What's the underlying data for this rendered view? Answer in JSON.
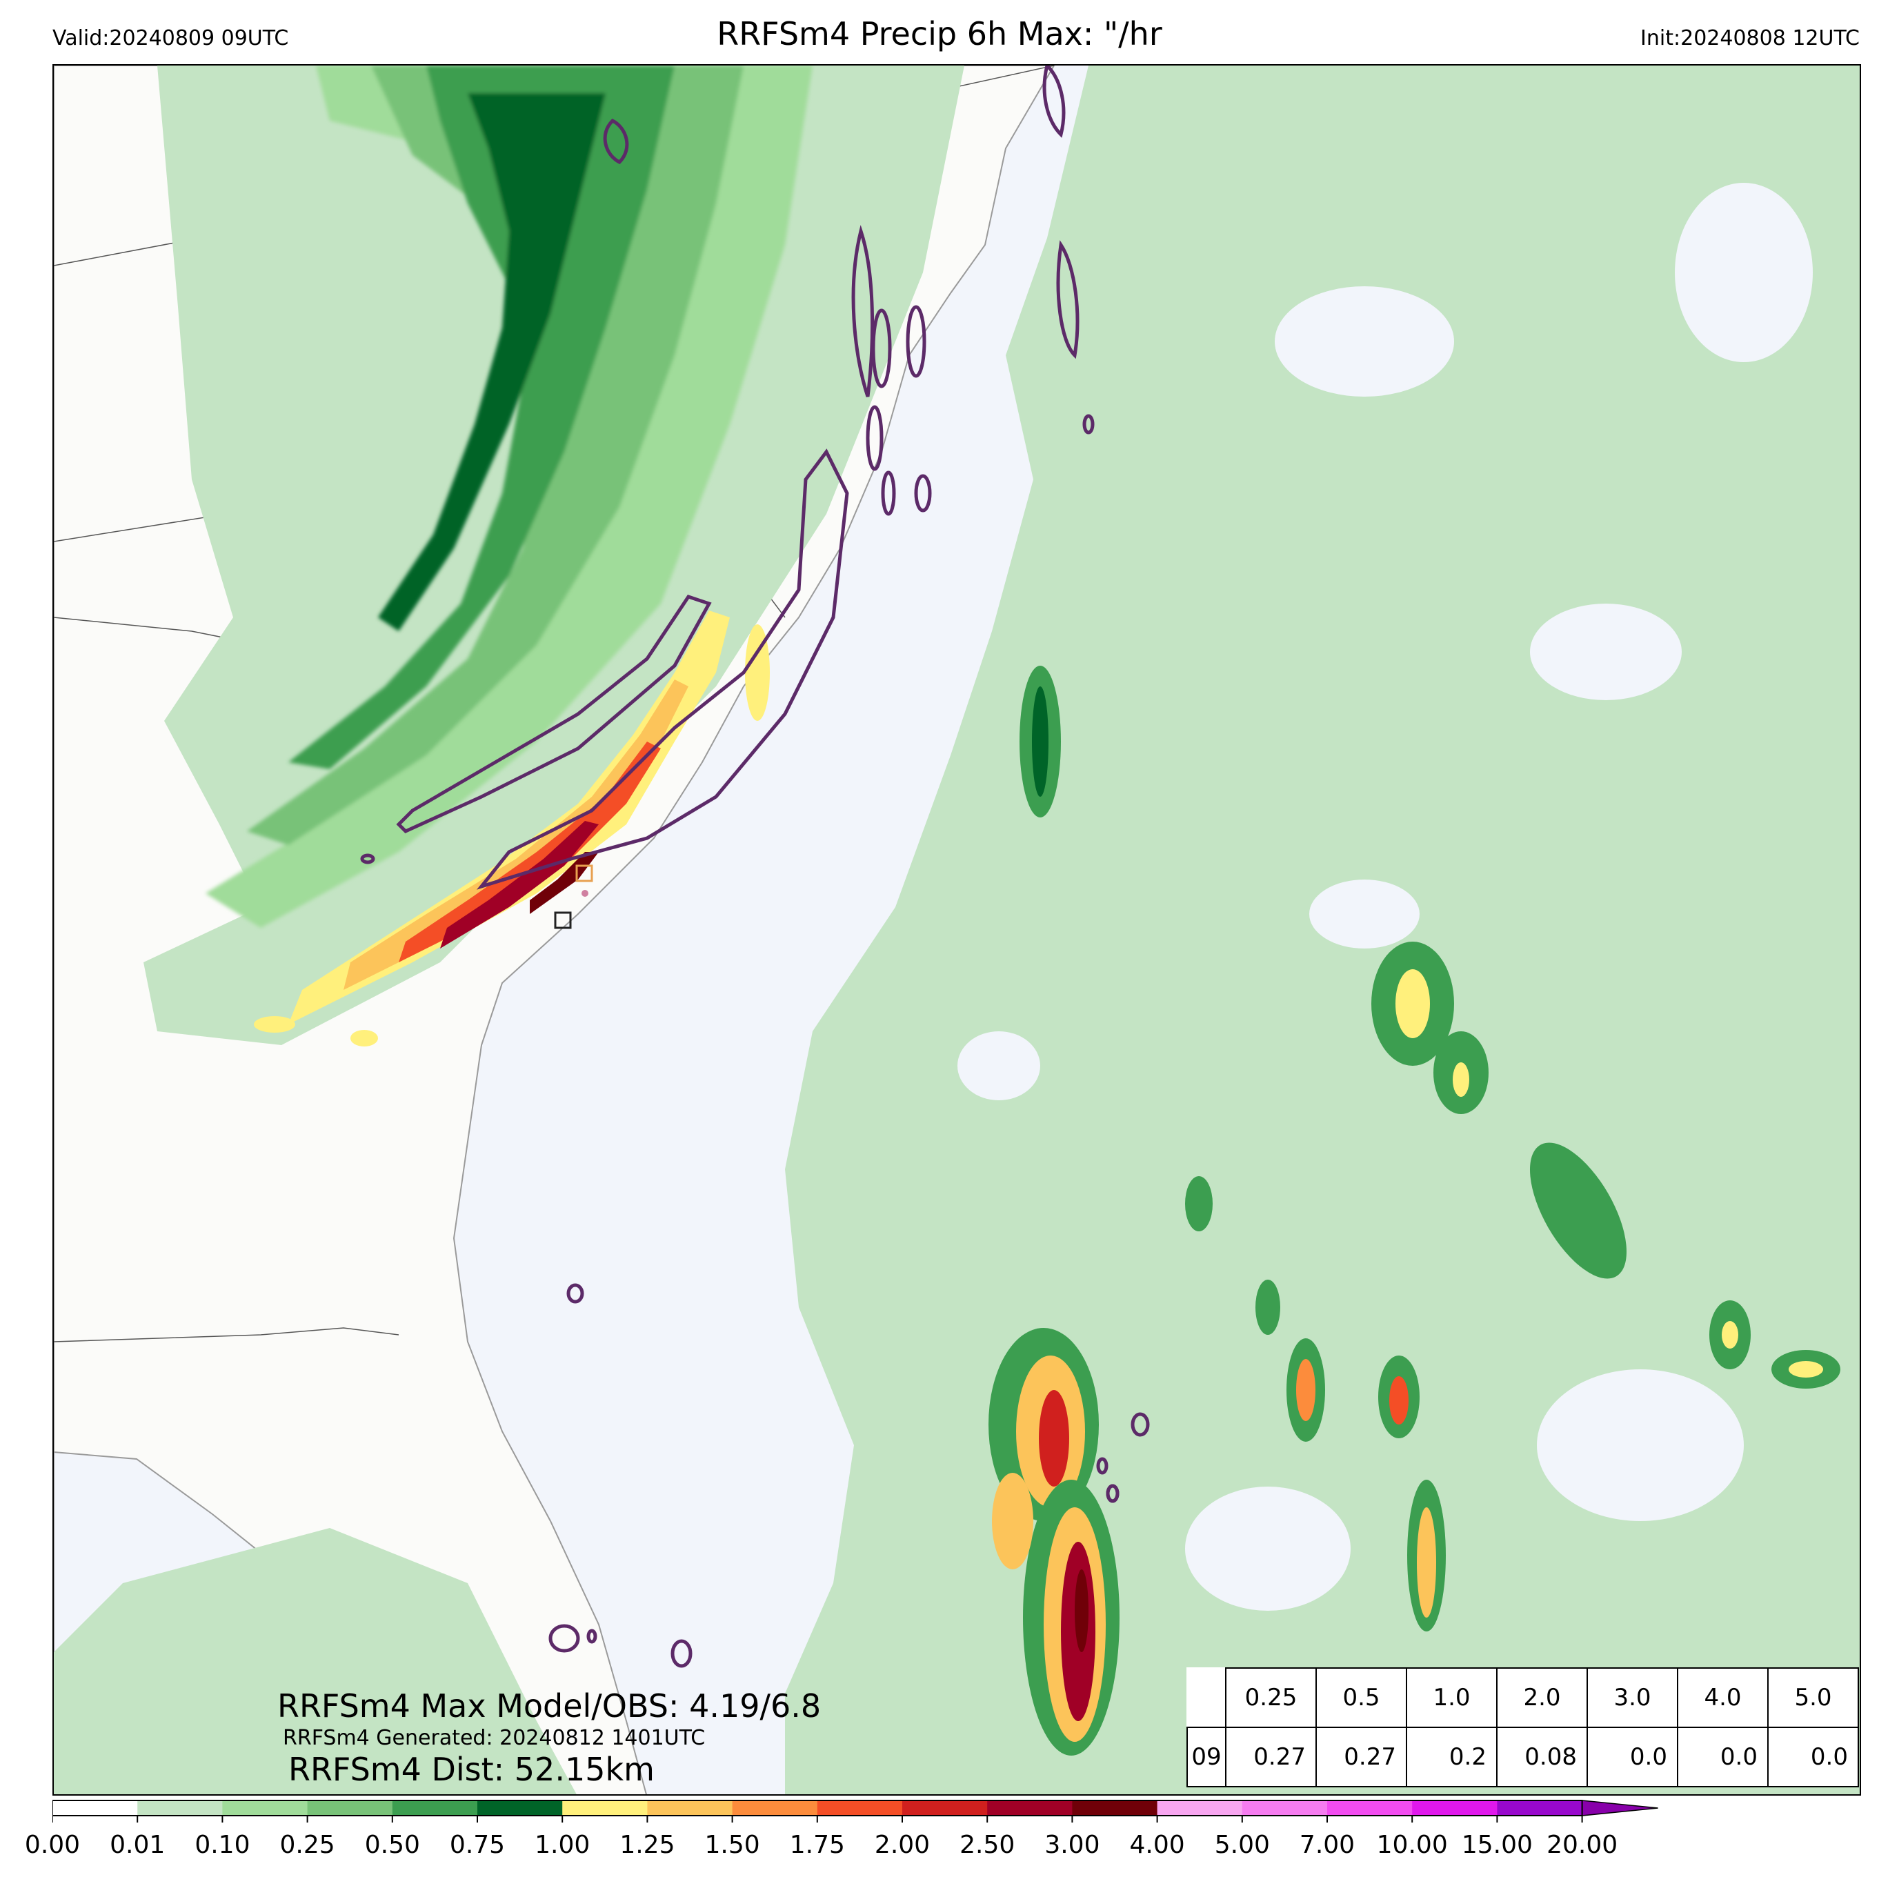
{
  "header": {
    "valid": "Valid:20240809 09UTC",
    "title": "RRFSm4 Precip 6h Max: \"/hr",
    "init": "Init:20240808 12UTC"
  },
  "annotations": {
    "max_model_obs": "RRFSm4 Max Model/OBS: 4.19/6.8",
    "generated": "RRFSm4 Generated: 20240812 1401UTC",
    "distance": "RRFSm4 Dist: 52.15km"
  },
  "threshold_table": {
    "headers": [
      "0.25",
      "0.5",
      "1.0",
      "2.0",
      "3.0",
      "4.0",
      "5.0"
    ],
    "row_label": "09",
    "values": [
      "0.27",
      "0.27",
      "0.2",
      "0.08",
      "0.0",
      "0.0",
      "0.0"
    ]
  },
  "colorbar": {
    "ticks": [
      "0.00",
      "0.01",
      "0.10",
      "0.25",
      "0.50",
      "0.75",
      "1.00",
      "1.25",
      "1.50",
      "1.75",
      "2.00",
      "2.50",
      "3.00",
      "4.00",
      "5.00",
      "7.00",
      "10.00",
      "15.00",
      "20.00"
    ],
    "colors": [
      "#ffffff",
      "#c4e4c4",
      "#a0dc9a",
      "#78c278",
      "#3c9e50",
      "#006428",
      "#fff07c",
      "#fcc45a",
      "#fc8c3c",
      "#f44e26",
      "#d0201e",
      "#a00026",
      "#700008",
      "#f8a6f0",
      "#f67cf0",
      "#f24cf0",
      "#e018ec",
      "#9808cc"
    ],
    "extend_color": "#8800aa"
  },
  "map": {
    "land_color": "#fbfbf9",
    "ocean_color": "#f2f5fb",
    "obs_contour_color": "#5c2a68"
  }
}
